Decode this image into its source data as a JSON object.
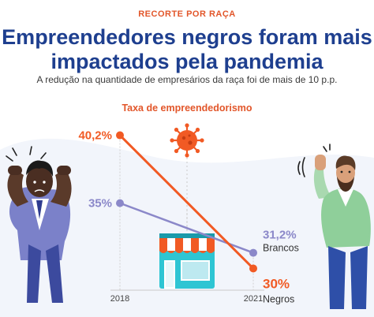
{
  "header": {
    "kicker": "RECORTE POR RAÇA",
    "title_line1": "Empreendedores negros foram mais",
    "title_line2": "impactados pela pandemia",
    "subtitle": "A redução na quantidade de empresários da raça foi de mais de 10 p.p."
  },
  "colors": {
    "negros": "#f15a24",
    "brancos": "#8b88c9",
    "title": "#1e3f8f",
    "accent": "#e2562a"
  },
  "icons": [
    "virus-icon",
    "storefront-icon",
    "worried-man-illustration",
    "frustrated-man-illustration"
  ],
  "chart_data": {
    "type": "line",
    "title": "Taxa de empreendedorismo",
    "categories": [
      "2018",
      "2021"
    ],
    "ylim": [
      29,
      41.5
    ],
    "series": [
      {
        "name": "Negros",
        "values": [
          40.2,
          30
        ],
        "labels": [
          "40,2%",
          "30%"
        ],
        "color": "#f15a24"
      },
      {
        "name": "Brancos",
        "values": [
          35,
          31.2
        ],
        "labels": [
          "35%",
          "31,2%"
        ],
        "color": "#8b88c9"
      }
    ]
  }
}
